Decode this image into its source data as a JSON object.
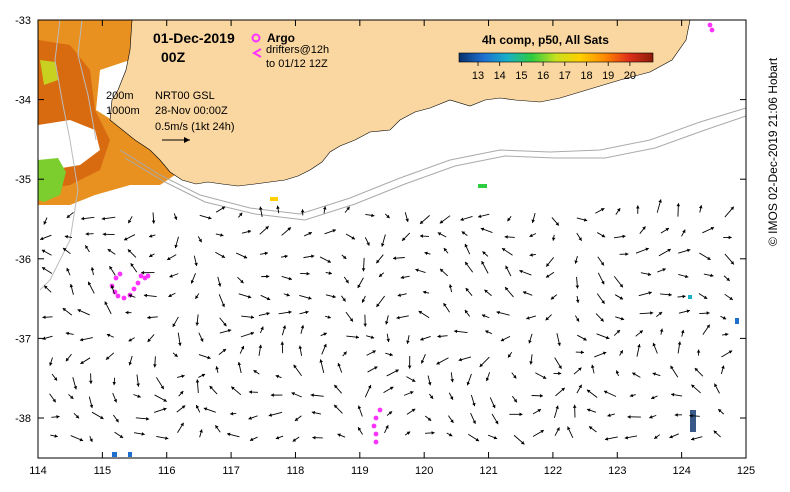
{
  "map": {
    "date": "01-Dec-2019",
    "time": "00Z",
    "legend": {
      "argo": "Argo",
      "drifters_line1": "drifters@12h",
      "drifters_line2": "to 01/12 12Z"
    },
    "contours": {
      "c200": "200m",
      "c1000": "1000m"
    },
    "product": "NRT00 GSL",
    "product_date": "28-Nov 00:00Z",
    "scale_label": "0.5m/s (1kt 24h)",
    "colorbar": {
      "title": "4h comp, p50, All Sats",
      "ticks": [
        "13",
        "14",
        "15",
        "16",
        "17",
        "18",
        "19",
        "20"
      ],
      "colors": [
        "#08306b",
        "#1f6fd0",
        "#18b0c8",
        "#2ecc40",
        "#c8e01e",
        "#ffd000",
        "#ff8a00",
        "#e0301a",
        "#8b1a0a"
      ]
    },
    "credit": "© IMOS 02-Dec-2019 21:06 Hobart",
    "x_ticks": [
      "114",
      "115",
      "116",
      "117",
      "118",
      "119",
      "120",
      "121",
      "122",
      "123",
      "124",
      "125"
    ],
    "y_ticks": [
      "-33",
      "-34",
      "-35",
      "-36",
      "-37",
      "-38"
    ],
    "land_color": "#fad7a0",
    "argo_color": "#ff33ff"
  }
}
